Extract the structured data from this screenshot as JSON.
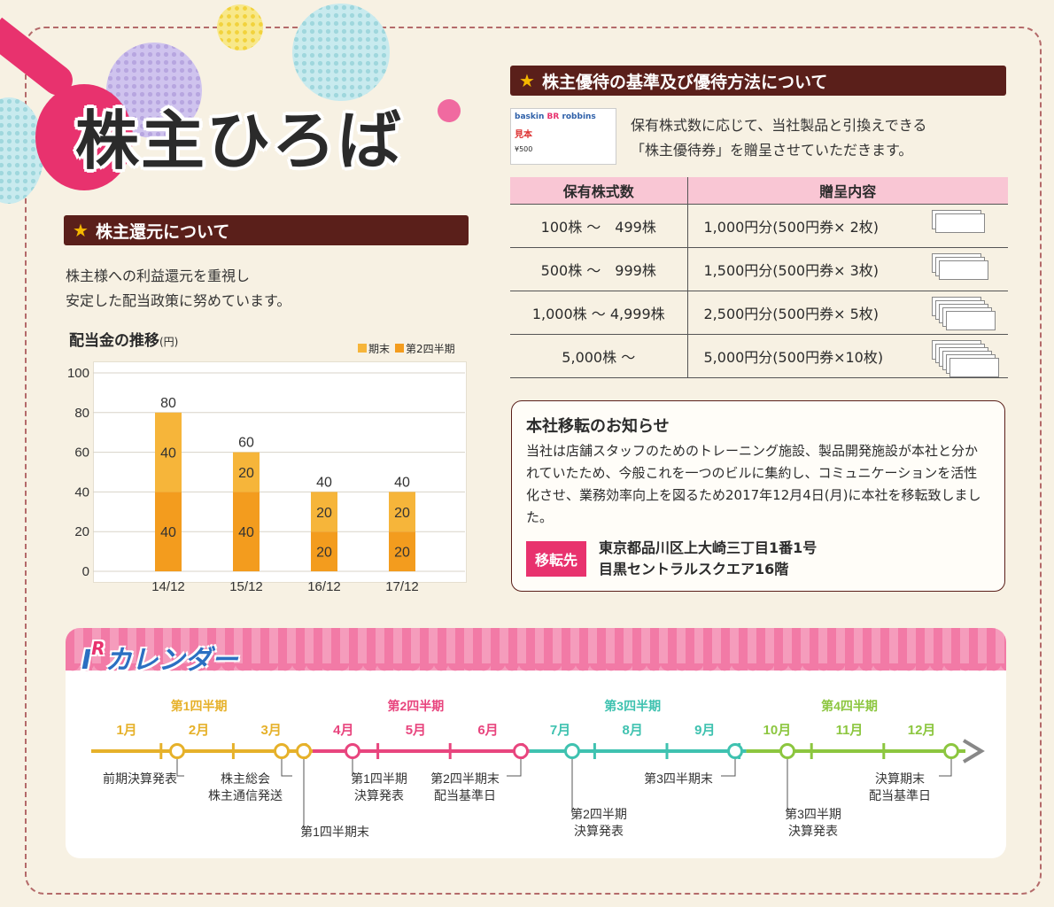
{
  "title": "株主ひろば",
  "shareholder_return": {
    "header": "株主還元について",
    "body_line1": "株主様への利益還元を重視し",
    "body_line2": "安定した配当政策に努めています。"
  },
  "chart_data": {
    "type": "bar",
    "stacked": true,
    "title": "配当金の推移",
    "unit": "(円)",
    "categories": [
      "14/12",
      "15/12",
      "16/12",
      "17/12"
    ],
    "series": [
      {
        "name": "第2四半期",
        "values": [
          40,
          40,
          20,
          20
        ],
        "color": "#f39c1e"
      },
      {
        "name": "期末",
        "values": [
          40,
          20,
          20,
          20
        ],
        "color": "#f6b53a"
      }
    ],
    "totals": [
      80,
      60,
      40,
      40
    ],
    "yticks": [
      0,
      20,
      40,
      60,
      80,
      100
    ],
    "ylim": [
      0,
      100
    ],
    "grid": true,
    "legend_position": "top-right"
  },
  "benefits": {
    "header": "株主優待の基準及び優待方法について",
    "ticket": {
      "brand1": "baskin",
      "brand2": "BR",
      "brand3": "robbins",
      "stamp": "見本",
      "price": "¥500"
    },
    "body_line1": "保有株式数に応じて、当社製品と引換えできる",
    "body_line2": "「株主優待券」を贈呈させていただきます。",
    "columns": [
      "保有株式数",
      "贈呈内容"
    ],
    "rows": [
      {
        "shares": "100株 ～　499株",
        "content": "1,000円分(500円券× 2枚)",
        "tickets": 2
      },
      {
        "shares": "500株 ～　999株",
        "content": "1,500円分(500円券× 3枚)",
        "tickets": 3
      },
      {
        "shares": "1,000株 ～ 4,999株",
        "content": "2,500円分(500円券× 5枚)",
        "tickets": 5
      },
      {
        "shares": "5,000株 ～",
        "content": "5,000円分(500円券×10枚)",
        "tickets": 10
      }
    ]
  },
  "notice": {
    "title": "本社移転のお知らせ",
    "body": "当社は店舗スタッフのためのトレーニング施設、製品開発施設が本社と分かれていたため、今般これを一つのビルに集約し、コミュニケーションを活性化させ、業務効率向上を図るため2017年12月4日(月)に本社を移転致しました。",
    "badge": "移転先",
    "address1": "東京都品川区上大崎三丁目1番1号",
    "address2": "目黒セントラルスクエア16階"
  },
  "ir_calendar": {
    "title_i": "I",
    "title_r": "R",
    "title_rest": "カレンダー",
    "quarters": [
      {
        "label": "第1四半期",
        "color": "#e6b12a"
      },
      {
        "label": "第2四半期",
        "color": "#e8457e"
      },
      {
        "label": "第3四半期",
        "color": "#3fc2b0"
      },
      {
        "label": "第4四半期",
        "color": "#8cc63f"
      }
    ],
    "months": [
      "1月",
      "2月",
      "3月",
      "4月",
      "5月",
      "6月",
      "7月",
      "8月",
      "9月",
      "10月",
      "11月",
      "12月"
    ],
    "events": [
      {
        "label": "前期決算発表"
      },
      {
        "label": "株主総会\n株主通信発送"
      },
      {
        "label": "第1四半期末"
      },
      {
        "label": "第1四半期\n決算発表"
      },
      {
        "label": "第2四半期末\n配当基準日"
      },
      {
        "label": "第2四半期\n決算発表"
      },
      {
        "label": "第3四半期末"
      },
      {
        "label": "第3四半期\n決算発表"
      },
      {
        "label": "決算期末\n配当基準日"
      }
    ]
  }
}
